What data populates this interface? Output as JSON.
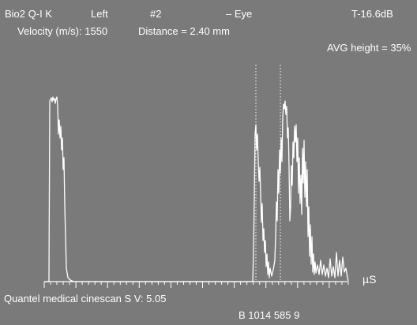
{
  "header": {
    "probe": "Bio2 Q-I K",
    "side": "Left",
    "exam_number": "#2",
    "mode": "– Eye",
    "gain": "T-16.6dB",
    "velocity": "Velocity (m/s): 1550",
    "distance": "Distance = 2.40 mm",
    "avg_height": "AVG height = 35%"
  },
  "axis": {
    "unit": "µS"
  },
  "footer": {
    "device": "Quantel medical cinescan S V: 5.05",
    "code": "B 1014 585 9"
  },
  "colors": {
    "background": "#7a7a7a",
    "trace": "#ffffff",
    "text": "#ffffff"
  }
}
